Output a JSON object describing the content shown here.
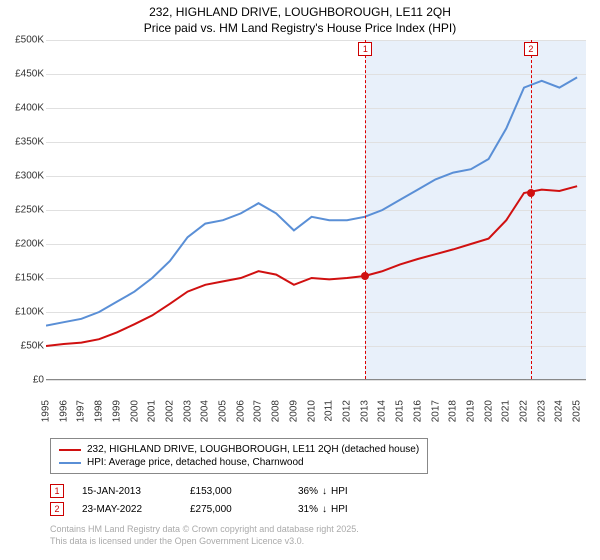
{
  "title_line1": "232, HIGHLAND DRIVE, LOUGHBOROUGH, LE11 2QH",
  "title_line2": "Price paid vs. HM Land Registry's House Price Index (HPI)",
  "chart": {
    "type": "line",
    "background_color": "#ffffff",
    "grid_color": "#e0e0e0",
    "shade_color": "#e8f0fa",
    "x_years": [
      1995,
      1996,
      1997,
      1998,
      1999,
      2000,
      2001,
      2002,
      2003,
      2004,
      2005,
      2006,
      2007,
      2008,
      2009,
      2010,
      2011,
      2012,
      2013,
      2014,
      2015,
      2016,
      2017,
      2018,
      2019,
      2020,
      2021,
      2022,
      2023,
      2024,
      2025
    ],
    "xlim": [
      1995,
      2025.5
    ],
    "ylim": [
      0,
      500
    ],
    "ytick_step": 50,
    "ytick_prefix": "£",
    "ytick_suffix": "K",
    "tick_fontsize": 10,
    "shade_start": 2013.04,
    "shade_end": 2025.5,
    "series": {
      "hpi": {
        "label": "HPI: Average price, detached house, Charnwood",
        "color": "#5a8fd6",
        "width": 2,
        "years": [
          1995,
          1996,
          1997,
          1998,
          1999,
          2000,
          2001,
          2002,
          2003,
          2004,
          2005,
          2006,
          2007,
          2008,
          2009,
          2010,
          2011,
          2012,
          2013,
          2014,
          2015,
          2016,
          2017,
          2018,
          2019,
          2020,
          2021,
          2022,
          2023,
          2024,
          2025
        ],
        "values": [
          80,
          85,
          90,
          100,
          115,
          130,
          150,
          175,
          210,
          230,
          235,
          245,
          260,
          245,
          220,
          240,
          235,
          235,
          240,
          250,
          265,
          280,
          295,
          305,
          310,
          325,
          370,
          430,
          440,
          430,
          445
        ]
      },
      "price_paid": {
        "label": "232, HIGHLAND DRIVE, LOUGHBOROUGH, LE11 2QH (detached house)",
        "color": "#d01010",
        "width": 2,
        "years": [
          1995,
          1996,
          1997,
          1998,
          1999,
          2000,
          2001,
          2002,
          2003,
          2004,
          2005,
          2006,
          2007,
          2008,
          2009,
          2010,
          2011,
          2012,
          2013,
          2014,
          2015,
          2016,
          2017,
          2018,
          2019,
          2020,
          2021,
          2022,
          2023,
          2024,
          2025
        ],
        "values": [
          50,
          53,
          55,
          60,
          70,
          82,
          95,
          112,
          130,
          140,
          145,
          150,
          160,
          155,
          140,
          150,
          148,
          150,
          153,
          160,
          170,
          178,
          185,
          192,
          200,
          208,
          235,
          275,
          280,
          278,
          285
        ]
      }
    },
    "markers": [
      {
        "n": "1",
        "year": 2013.04,
        "value": 153,
        "color": "#d01010"
      },
      {
        "n": "2",
        "year": 2022.39,
        "value": 275,
        "color": "#d01010"
      }
    ]
  },
  "legend": {
    "items": [
      {
        "color": "#d01010",
        "label": "232, HIGHLAND DRIVE, LOUGHBOROUGH, LE11 2QH (detached house)"
      },
      {
        "color": "#5a8fd6",
        "label": "HPI: Average price, detached house, Charnwood"
      }
    ]
  },
  "transactions": [
    {
      "n": "1",
      "date": "15-JAN-2013",
      "price": "£153,000",
      "delta": "36%",
      "delta_dir": "down",
      "delta_label": "HPI"
    },
    {
      "n": "2",
      "date": "23-MAY-2022",
      "price": "£275,000",
      "delta": "31%",
      "delta_dir": "down",
      "delta_label": "HPI"
    }
  ],
  "copyright": {
    "line1": "Contains HM Land Registry data © Crown copyright and database right 2025.",
    "line2": "This data is licensed under the Open Government Licence v3.0."
  }
}
